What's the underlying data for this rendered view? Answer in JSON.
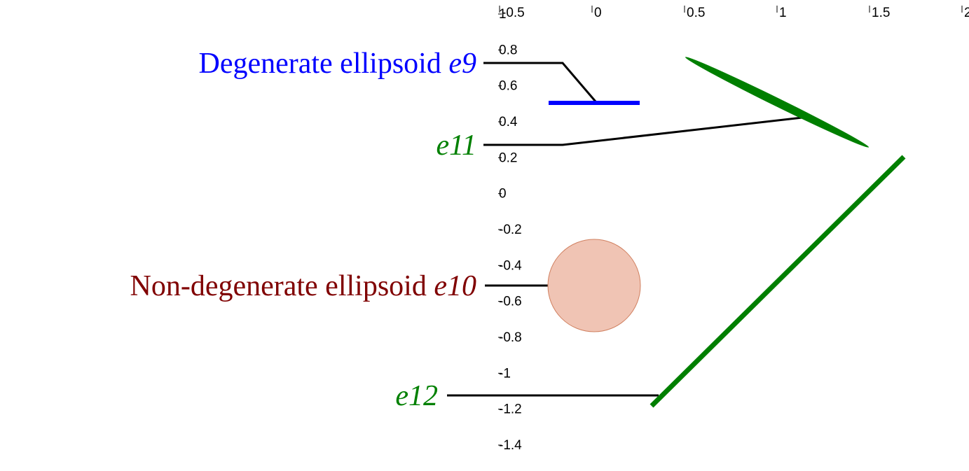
{
  "chart_data": {
    "type": "diagram",
    "xlim": [
      -0.5,
      2
    ],
    "xticks": [
      -0.5,
      0,
      0.5,
      1,
      1.5,
      2
    ],
    "ylim": [
      -1.4,
      1
    ],
    "yticks": [
      1,
      0.8,
      0.6,
      0.4,
      0.2,
      0,
      -0.2,
      -0.4,
      -0.6,
      -0.8,
      -1,
      -1.2,
      -1.4
    ],
    "annotations": [
      {
        "text": "Degenerate ellipsoid",
        "id": "e9",
        "color": "#0000ff"
      },
      {
        "text": "",
        "id": "e11",
        "color": "#008000"
      },
      {
        "text": "Non-degenerate ellipsoid",
        "id": "e10",
        "color": "#800000"
      },
      {
        "text": "",
        "id": "e12",
        "color": "#008000"
      }
    ]
  }
}
